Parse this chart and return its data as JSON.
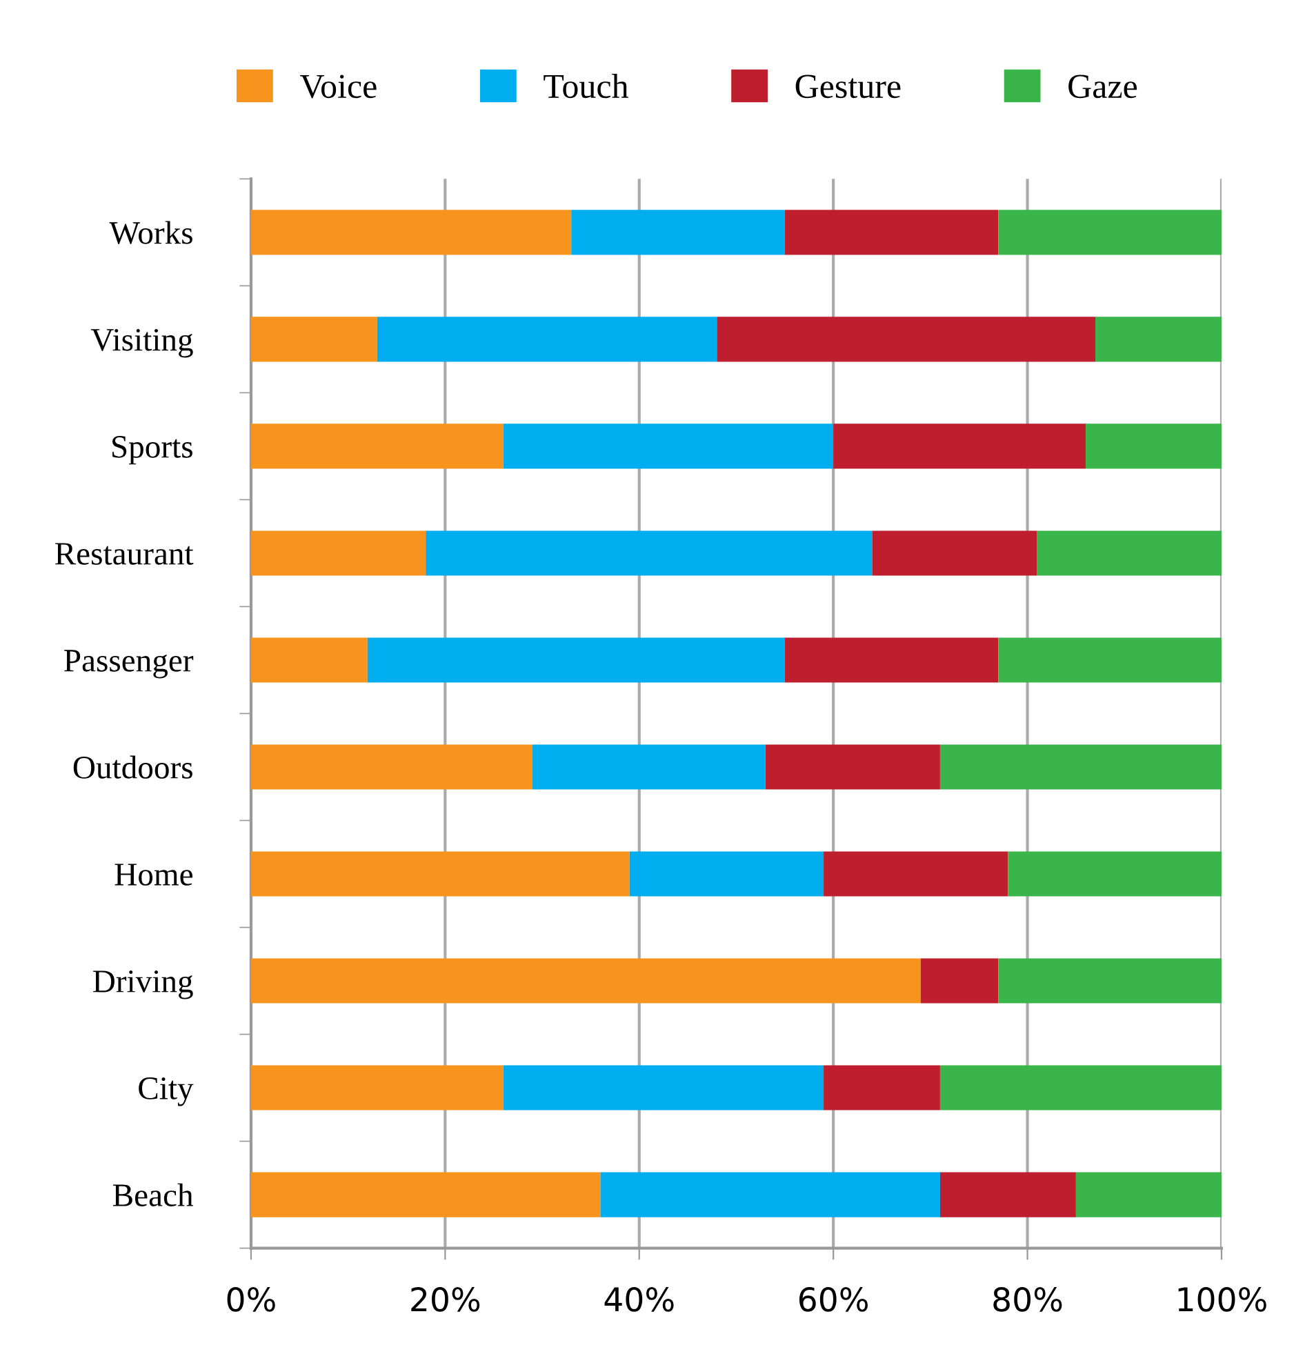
{
  "chart_data": {
    "type": "bar",
    "orientation": "horizontal",
    "stacked": true,
    "categories": [
      "Works",
      "Visiting",
      "Sports",
      "Restaurant",
      "Passenger",
      "Outdoors",
      "Home",
      "Driving",
      "City",
      "Beach"
    ],
    "series": [
      {
        "name": "Voice",
        "color": "#f7941d",
        "values": [
          33,
          13,
          26,
          18,
          12,
          29,
          39,
          69,
          26,
          36
        ]
      },
      {
        "name": "Touch",
        "color": "#00aeef",
        "values": [
          22,
          35,
          34,
          46,
          43,
          24,
          20,
          0,
          33,
          35
        ]
      },
      {
        "name": "Gesture",
        "color": "#be1e2d",
        "values": [
          22,
          39,
          26,
          17,
          22,
          18,
          19,
          8,
          12,
          14
        ]
      },
      {
        "name": "Gaze",
        "color": "#39b54a",
        "values": [
          23,
          13,
          14,
          19,
          23,
          29,
          22,
          23,
          29,
          15
        ]
      }
    ],
    "xlim": [
      0,
      100
    ],
    "xticks": [
      {
        "value": 0,
        "label": "0%"
      },
      {
        "value": 20,
        "label": "20%"
      },
      {
        "value": 40,
        "label": "40%"
      },
      {
        "value": 60,
        "label": "60%"
      },
      {
        "value": 80,
        "label": "80%"
      },
      {
        "value": 100,
        "label": "100%"
      }
    ],
    "grid": "x",
    "legend": "top"
  }
}
